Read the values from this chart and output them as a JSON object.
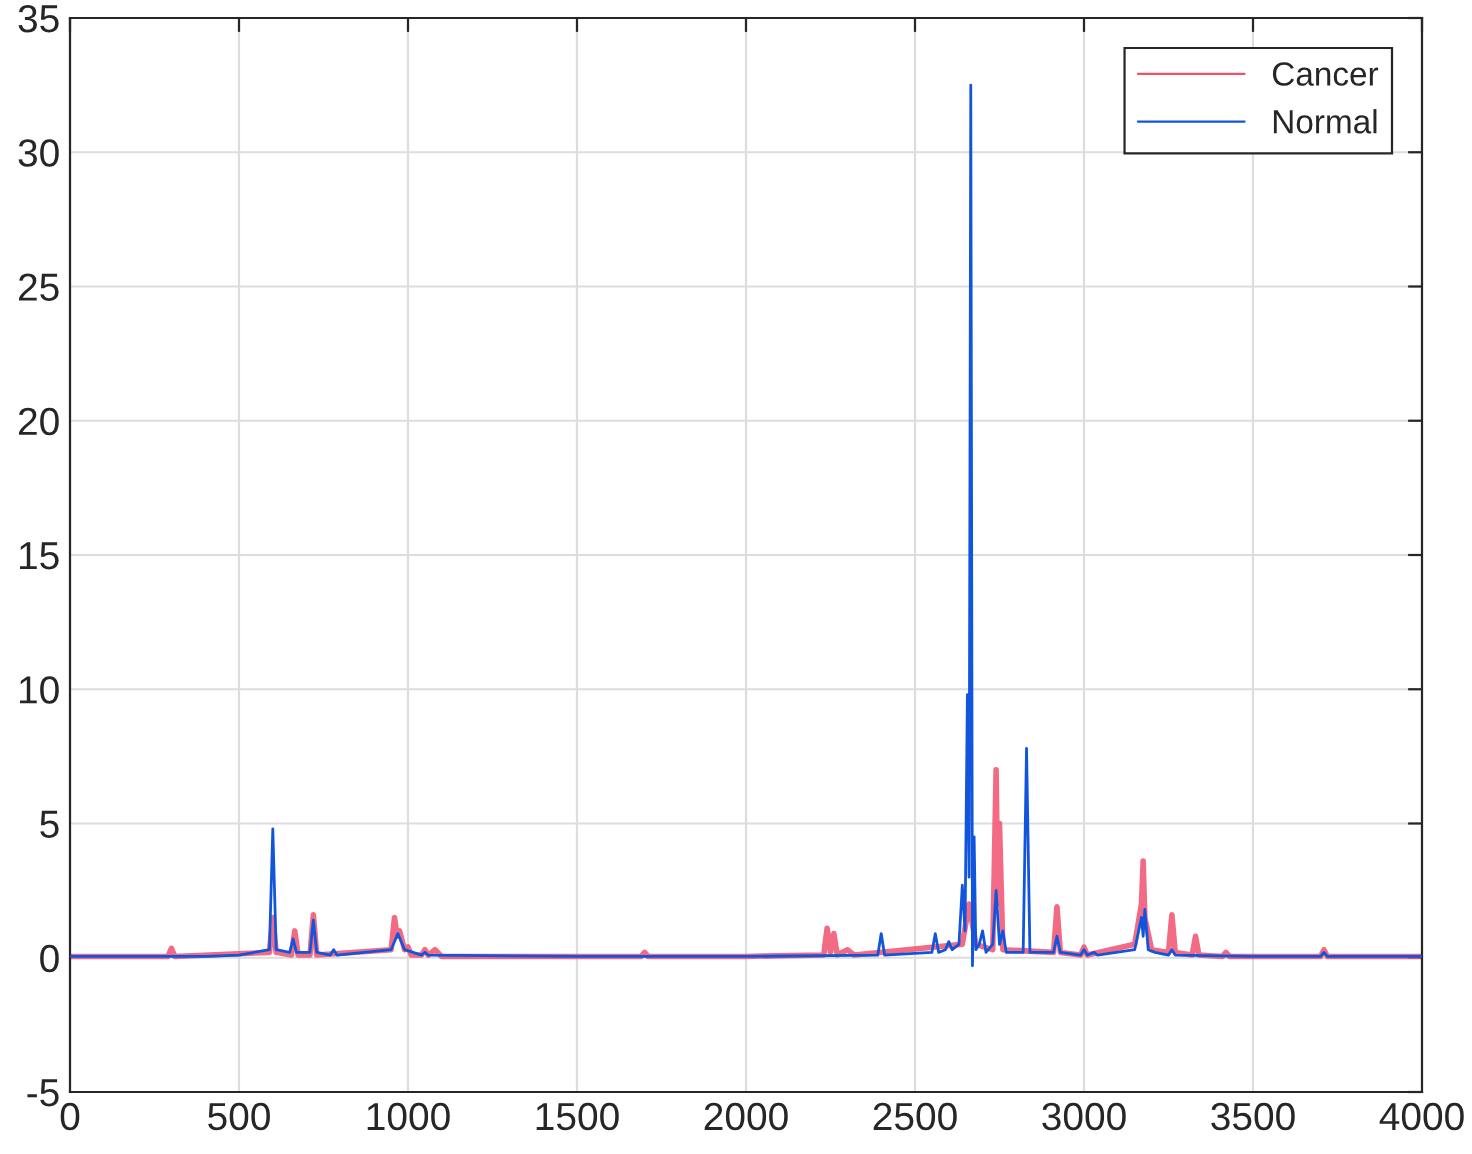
{
  "chart_data": {
    "type": "line",
    "xlim": [
      0,
      4000
    ],
    "ylim": [
      -5,
      35
    ],
    "xticks": [
      0,
      500,
      1000,
      1500,
      2000,
      2500,
      3000,
      3500,
      4000
    ],
    "yticks": [
      -5,
      0,
      5,
      10,
      15,
      20,
      25,
      30,
      35
    ],
    "grid": true,
    "legend": "top right",
    "marker": "none",
    "line_style": "solid",
    "series": [
      {
        "name": "Cancer",
        "color": "#f0506e",
        "x": [
          0,
          290,
          300,
          310,
          590,
          600,
          610,
          655,
          665,
          675,
          710,
          720,
          730,
          950,
          960,
          968,
          975,
          990,
          1000,
          1010,
          1040,
          1050,
          1060,
          1080,
          1100,
          1690,
          1700,
          1710,
          2000,
          2230,
          2240,
          2250,
          2260,
          2270,
          2300,
          2320,
          2640,
          2660,
          2680,
          2730,
          2740,
          2745,
          2750,
          2760,
          2910,
          2920,
          2930,
          2990,
          3000,
          3010,
          3150,
          3170,
          3175,
          3180,
          3200,
          3250,
          3260,
          3270,
          3320,
          3330,
          3340,
          3410,
          3420,
          3430,
          3700,
          3710,
          3720,
          4000
        ],
        "values": [
          0.05,
          0.05,
          0.35,
          0.05,
          0.2,
          1.5,
          0.2,
          0.1,
          1.0,
          0.1,
          0.1,
          1.6,
          0.1,
          0.3,
          1.5,
          0.8,
          1.0,
          0.3,
          0.4,
          0.1,
          0.1,
          0.3,
          0.1,
          0.3,
          0.05,
          0.05,
          0.2,
          0.05,
          0.05,
          0.1,
          1.1,
          0.2,
          0.9,
          0.1,
          0.3,
          0.1,
          0.5,
          2.0,
          0.5,
          0.3,
          7.0,
          2.0,
          5.0,
          0.3,
          0.2,
          1.9,
          0.2,
          0.1,
          0.4,
          0.1,
          0.5,
          2.0,
          3.6,
          1.5,
          0.3,
          0.2,
          1.6,
          0.2,
          0.1,
          0.8,
          0.1,
          0.05,
          0.2,
          0.05,
          0.05,
          0.3,
          0.05,
          0.05
        ]
      },
      {
        "name": "Normal",
        "color": "#1155dd",
        "x": [
          0,
          100,
          200,
          300,
          400,
          500,
          590,
          600,
          610,
          650,
          660,
          670,
          710,
          720,
          730,
          770,
          780,
          790,
          950,
          970,
          990,
          1040,
          1050,
          1060,
          1500,
          2000,
          2390,
          2400,
          2410,
          2550,
          2560,
          2570,
          2590,
          2600,
          2610,
          2630,
          2640,
          2648,
          2655,
          2660,
          2665,
          2670,
          2675,
          2680,
          2690,
          2700,
          2710,
          2730,
          2740,
          2750,
          2760,
          2770,
          2820,
          2830,
          2840,
          2910,
          2920,
          2930,
          2990,
          3000,
          3010,
          3030,
          3040,
          3150,
          3170,
          3175,
          3180,
          3190,
          3210,
          3250,
          3260,
          3270,
          3500,
          3700,
          3710,
          3720,
          4000
        ],
        "values": [
          0.05,
          0.05,
          0.05,
          0.05,
          0.05,
          0.1,
          0.3,
          4.8,
          0.3,
          0.2,
          0.7,
          0.2,
          0.2,
          1.4,
          0.2,
          0.1,
          0.3,
          0.1,
          0.3,
          0.9,
          0.3,
          0.1,
          0.2,
          0.1,
          0.05,
          0.05,
          0.1,
          0.9,
          0.1,
          0.2,
          0.9,
          0.2,
          0.3,
          0.6,
          0.3,
          0.5,
          2.7,
          1.0,
          9.8,
          3.0,
          32.5,
          -0.3,
          4.5,
          0.3,
          0.5,
          1.0,
          0.2,
          0.5,
          2.5,
          0.5,
          1.0,
          0.2,
          0.2,
          7.8,
          0.2,
          0.2,
          0.8,
          0.2,
          0.1,
          0.3,
          0.1,
          0.2,
          0.1,
          0.3,
          1.5,
          0.8,
          1.8,
          0.3,
          0.2,
          0.1,
          0.3,
          0.1,
          0.05,
          0.05,
          0.2,
          0.05,
          0.05
        ]
      }
    ]
  }
}
